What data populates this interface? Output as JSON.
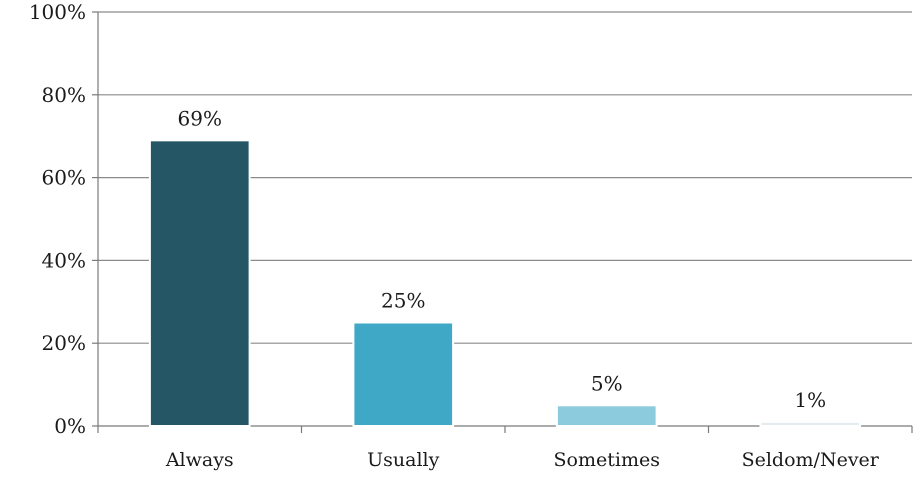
{
  "chart_data": {
    "type": "bar",
    "title": "",
    "xlabel": "",
    "ylabel": "",
    "categories": [
      "Always",
      "Usually",
      "Sometimes",
      "Seldom/Never"
    ],
    "values": [
      69,
      25,
      5,
      1
    ],
    "data_labels": [
      "69%",
      "25%",
      "5%",
      "1%"
    ],
    "ylim": [
      0,
      100
    ],
    "yticks": [
      0,
      20,
      40,
      60,
      80,
      100
    ],
    "ytick_labels": [
      "0%",
      "20%",
      "40%",
      "60%",
      "80%",
      "100%"
    ],
    "grid": true,
    "legend": "none",
    "colors": [
      "#245665",
      "#3fa8c6",
      "#8ccbdd",
      "#e3edf0"
    ]
  }
}
